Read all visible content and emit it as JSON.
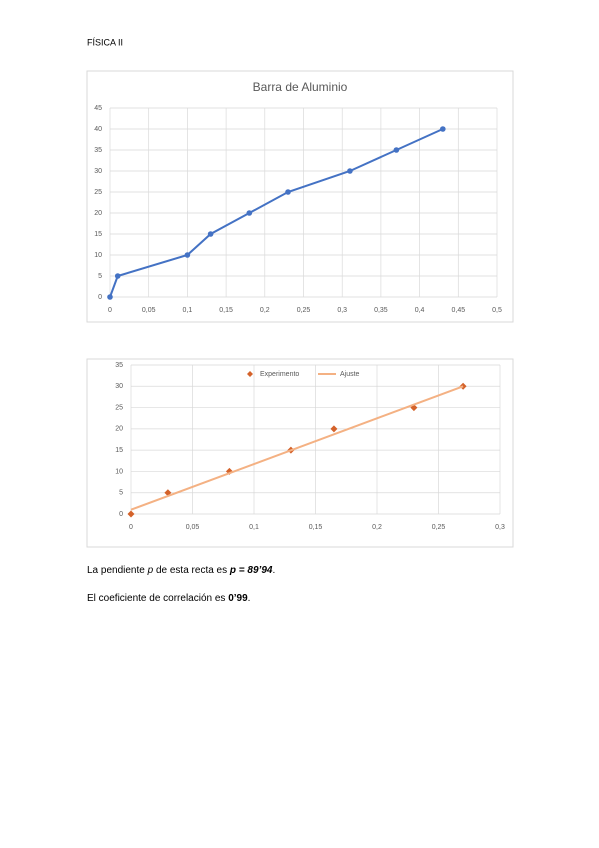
{
  "header": "FÍSICA II",
  "chart_data": [
    {
      "type": "line",
      "title": "Barra de Aluminio",
      "color": "#4472c4",
      "grid": true,
      "x": [
        0,
        0.01,
        0.1,
        0.13,
        0.18,
        0.23,
        0.31,
        0.37,
        0.43
      ],
      "values": [
        0,
        5,
        10,
        15,
        20,
        25,
        30,
        35,
        40
      ],
      "xlim": [
        0,
        0.5
      ],
      "xticks": [
        0,
        {
          "value": 0.05,
          "label": "0,05"
        },
        {
          "value": 0.1,
          "label": "0,1"
        },
        {
          "value": 0.15,
          "label": "0,15"
        },
        {
          "value": 0.2,
          "label": "0,2"
        },
        {
          "value": 0.25,
          "label": "0,25"
        },
        {
          "value": 0.3,
          "label": "0,3"
        },
        {
          "value": 0.35,
          "label": "0,35"
        },
        {
          "value": 0.4,
          "label": "0,4"
        },
        {
          "value": 0.45,
          "label": "0,45"
        },
        {
          "value": 0.5,
          "label": "0,5"
        }
      ],
      "ylim": [
        0,
        45
      ],
      "yticks": [
        0,
        5,
        10,
        15,
        20,
        25,
        30,
        35,
        40,
        45
      ]
    },
    {
      "type": "scatter",
      "grid": true,
      "legend": "top",
      "series": [
        {
          "name": "Experimento",
          "color": "#d4622a",
          "style": "markers",
          "x": [
            0,
            0.03,
            0.08,
            0.13,
            0.165,
            0.23,
            0.27
          ],
          "values": [
            0,
            5,
            10,
            15,
            20,
            25,
            30
          ]
        },
        {
          "name": "Ajuste",
          "color": "#f4b183",
          "style": "line",
          "x": [
            0,
            0.27
          ],
          "values": [
            1,
            30
          ]
        }
      ],
      "xlim": [
        0,
        0.3
      ],
      "xticks": [
        0,
        {
          "value": 0.05,
          "label": "0,05"
        },
        {
          "value": 0.1,
          "label": "0,1"
        },
        {
          "value": 0.15,
          "label": "0,15"
        },
        {
          "value": 0.2,
          "label": "0,2"
        },
        {
          "value": 0.25,
          "label": "0,25"
        },
        {
          "value": 0.3,
          "label": "0,3"
        }
      ],
      "ylim": [
        0,
        35
      ],
      "yticks": [
        0,
        5,
        10,
        15,
        20,
        25,
        30,
        35
      ]
    }
  ],
  "paragraphs": [
    [
      "La pendiente ",
      "p",
      " de esta recta es ",
      "p = 89’94",
      "."
    ],
    [
      "El coeficiente de correlación es ",
      "0’99",
      "."
    ]
  ]
}
